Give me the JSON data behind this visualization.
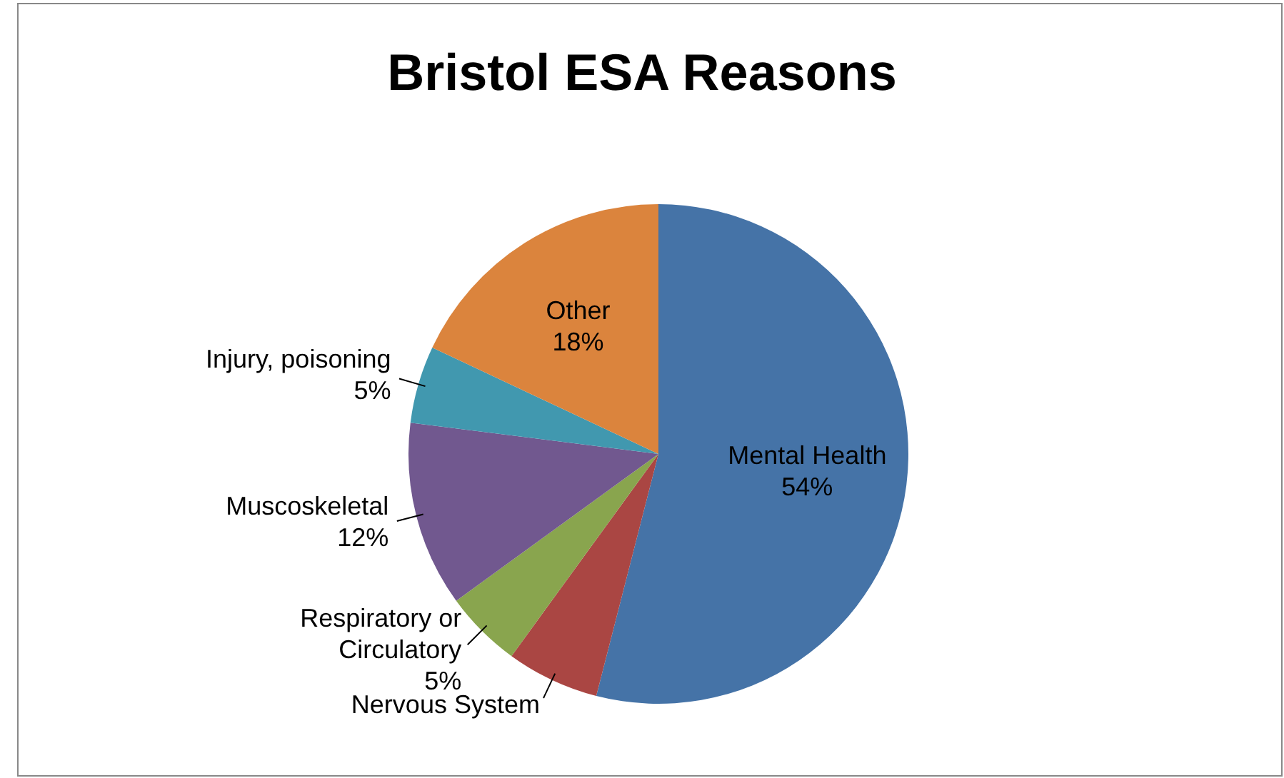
{
  "chart_data": {
    "type": "pie",
    "title": "Bristol ESA Reasons",
    "categories": [
      "Mental Health",
      "Nervous System",
      "Respiratory or Circulatory",
      "Muscoskeletal",
      "Injury, poisoning",
      "Other"
    ],
    "values": [
      54,
      6,
      5,
      12,
      5,
      18
    ],
    "value_labels": [
      "54%",
      null,
      "5%",
      "12%",
      "5%",
      "18%"
    ],
    "colors": [
      "#4573a7",
      "#aa4643",
      "#89a54e",
      "#71588f",
      "#4198af",
      "#db843d"
    ],
    "legend": false
  }
}
